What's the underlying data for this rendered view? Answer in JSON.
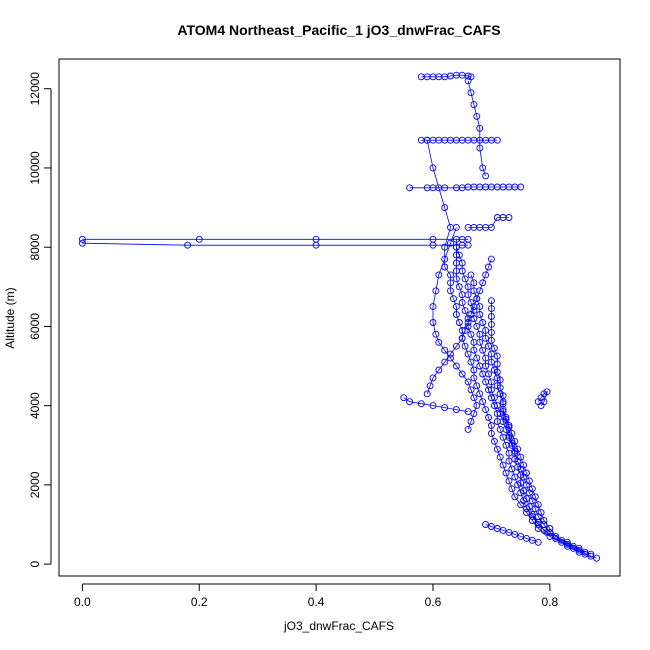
{
  "chart_data": {
    "type": "scatter",
    "title": "ATOM4 Northeast_Pacific_1 jO3_dnwFrac_CAFS",
    "xlabel": "jO3_dnwFrac_CAFS",
    "ylabel": "Altitude (m)",
    "xlim": [
      -0.04,
      0.92
    ],
    "ylim": [
      -300,
      12750
    ],
    "x_ticks": [
      0.0,
      0.2,
      0.4,
      0.6,
      0.8
    ],
    "x_tick_labels": [
      "0.0",
      "0.2",
      "0.4",
      "0.6",
      "0.8"
    ],
    "y_ticks": [
      0,
      2000,
      4000,
      6000,
      8000,
      10000,
      12000
    ],
    "y_tick_labels": [
      "0",
      "2000",
      "4000",
      "6000",
      "8000",
      "10000",
      "12000"
    ],
    "grid": false,
    "legend": "none",
    "marker": "open-circle",
    "connect_points": true,
    "series": [
      {
        "color": "#0000ff",
        "x": [
          0.88,
          0.86,
          0.84,
          0.82,
          0.8,
          0.78,
          0.77,
          0.76,
          0.75,
          0.74,
          0.735,
          0.73,
          0.725,
          0.72,
          0.715,
          0.71,
          0.705,
          0.7,
          0.7,
          0.695,
          0.69,
          0.685,
          0.68,
          0.675,
          0.67,
          0.67,
          0.665,
          0.66,
          0.655,
          0.65,
          0.65,
          0.645,
          0.64,
          0.64,
          0.635,
          0.63,
          0.63,
          0.63,
          0.62,
          0.62,
          0.63,
          0.62,
          0.61,
          0.6,
          0.59
        ],
        "y": [
          150,
          250,
          400,
          550,
          700,
          900,
          1100,
          1300,
          1500,
          1700,
          1900,
          2100,
          2300,
          2500,
          2700,
          2900,
          3100,
          3300,
          3500,
          3700,
          3900,
          4100,
          4300,
          4500,
          4700,
          4900,
          5100,
          5300,
          5500,
          5700,
          5900,
          6100,
          6300,
          6500,
          6700,
          6900,
          7100,
          7300,
          7500,
          8000,
          8500,
          9000,
          9500,
          10000,
          10700
        ]
      },
      {
        "color": "#0000ff",
        "x": [
          0.87,
          0.85,
          0.83,
          0.81,
          0.795,
          0.78,
          0.77,
          0.76,
          0.755,
          0.75,
          0.745,
          0.74,
          0.735,
          0.73,
          0.73,
          0.725,
          0.72,
          0.715,
          0.71,
          0.71,
          0.705,
          0.7,
          0.695,
          0.69,
          0.685,
          0.68,
          0.675,
          0.67,
          0.67,
          0.665,
          0.66,
          0.66,
          0.655,
          0.65,
          0.65,
          0.645,
          0.64,
          0.64,
          0.64,
          0.64,
          0.64
        ],
        "y": [
          200,
          350,
          500,
          650,
          800,
          1000,
          1200,
          1400,
          1600,
          1800,
          2000,
          2200,
          2400,
          2600,
          2800,
          3000,
          3200,
          3400,
          3600,
          3800,
          4000,
          4200,
          4400,
          4600,
          4800,
          5000,
          5200,
          5400,
          5600,
          5800,
          6000,
          6200,
          6400,
          6600,
          6800,
          7000,
          7200,
          7400,
          7600,
          7800,
          8000
        ]
      },
      {
        "color": "#0000ff",
        "x": [
          0.86,
          0.84,
          0.82,
          0.8,
          0.79,
          0.78,
          0.775,
          0.77,
          0.765,
          0.76,
          0.755,
          0.75,
          0.745,
          0.74,
          0.735,
          0.73,
          0.725,
          0.72,
          0.715,
          0.71,
          0.705,
          0.7,
          0.7,
          0.695,
          0.69,
          0.69,
          0.685,
          0.68,
          0.68,
          0.675,
          0.67,
          0.67,
          0.665,
          0.66,
          0.66,
          0.655,
          0.65,
          0.65,
          0.645,
          0.64,
          0.64
        ],
        "y": [
          300,
          450,
          600,
          800,
          1000,
          1200,
          1400,
          1600,
          1800,
          2000,
          2200,
          2400,
          2600,
          2800,
          3000,
          3200,
          3400,
          3600,
          3800,
          4000,
          4200,
          4400,
          4600,
          4800,
          5000,
          5200,
          5400,
          5600,
          5800,
          6000,
          6200,
          6400,
          6600,
          6800,
          7000,
          7200,
          7400,
          7600,
          7800,
          8000,
          8200
        ]
      },
      {
        "color": "#0000ff",
        "x": [
          0.87,
          0.85,
          0.83,
          0.81,
          0.8,
          0.79,
          0.785,
          0.78,
          0.775,
          0.77,
          0.765,
          0.76,
          0.755,
          0.75,
          0.745,
          0.74,
          0.735,
          0.73,
          0.725,
          0.72,
          0.72,
          0.715,
          0.71,
          0.71,
          0.705,
          0.7,
          0.7,
          0.695,
          0.69,
          0.69,
          0.685,
          0.68,
          0.68,
          0.675,
          0.67,
          0.67,
          0.665
        ],
        "y": [
          250,
          400,
          550,
          700,
          900,
          1100,
          1300,
          1500,
          1700,
          1900,
          2100,
          2300,
          2500,
          2700,
          2900,
          3100,
          3300,
          3500,
          3700,
          3900,
          4100,
          4300,
          4500,
          4700,
          4900,
          5100,
          5300,
          5500,
          5700,
          5900,
          6100,
          6300,
          6500,
          6700,
          6900,
          7100,
          7300
        ]
      },
      {
        "color": "#0000ff",
        "x": [
          0.85,
          0.83,
          0.81,
          0.79,
          0.78,
          0.77,
          0.765,
          0.76,
          0.755,
          0.75,
          0.75,
          0.745,
          0.74,
          0.74,
          0.735,
          0.73,
          0.73,
          0.725,
          0.72,
          0.72,
          0.72,
          0.715,
          0.715,
          0.71,
          0.71,
          0.71,
          0.705,
          0.7,
          0.7,
          0.7,
          0.7,
          0.7,
          0.7
        ],
        "y": [
          300,
          450,
          650,
          850,
          1050,
          1250,
          1450,
          1650,
          1850,
          2050,
          2250,
          2450,
          2650,
          2850,
          3050,
          3250,
          3450,
          3650,
          3850,
          4050,
          4250,
          4450,
          4650,
          4850,
          5050,
          5250,
          5450,
          5650,
          5850,
          6050,
          6250,
          6450,
          6650
        ]
      },
      {
        "color": "#0000ff",
        "x": [
          0.64,
          0.63,
          0.62,
          0.61,
          0.605,
          0.6,
          0.6,
          0.605,
          0.61,
          0.62,
          0.63,
          0.64,
          0.65,
          0.66,
          0.665,
          0.67,
          0.675,
          0.67,
          0.665,
          0.66
        ],
        "y": [
          8500,
          8100,
          7700,
          7300,
          6900,
          6500,
          6100,
          5800,
          5600,
          5400,
          5200,
          5000,
          4800,
          4600,
          4400,
          4200,
          4000,
          3800,
          3600,
          3400
        ]
      },
      {
        "color": "#0000ff",
        "x": [
          0.59,
          0.595,
          0.6,
          0.61,
          0.62,
          0.63,
          0.64,
          0.65,
          0.655,
          0.66,
          0.665,
          0.67,
          0.675,
          0.68,
          0.685,
          0.69,
          0.695,
          0.7
        ],
        "y": [
          4300,
          4500,
          4700,
          4900,
          5100,
          5300,
          5500,
          5700,
          5900,
          6100,
          6300,
          6500,
          6700,
          6900,
          7100,
          7300,
          7500,
          7700
        ]
      },
      {
        "color": "#0000ff",
        "x": [
          0.0,
          0.2,
          0.4,
          0.6,
          0.65,
          0.66
        ],
        "y": [
          8200,
          8200,
          8200,
          8200,
          8200,
          8200
        ]
      },
      {
        "color": "#0000ff",
        "x": [
          0.0,
          0.18,
          0.4,
          0.6,
          0.65,
          0.66
        ],
        "y": [
          8100,
          8050,
          8050,
          8050,
          8050,
          8050
        ]
      },
      {
        "color": "#0000ff",
        "x": [
          0.58,
          0.59,
          0.6,
          0.61,
          0.62,
          0.63,
          0.64,
          0.65,
          0.66,
          0.665
        ],
        "y": [
          12300,
          12300,
          12300,
          12300,
          12300,
          12320,
          12340,
          12340,
          12320,
          12300
        ]
      },
      {
        "color": "#0000ff",
        "x": [
          0.58,
          0.59,
          0.6,
          0.61,
          0.62,
          0.63,
          0.64,
          0.65,
          0.66,
          0.67,
          0.68,
          0.69,
          0.7,
          0.71
        ],
        "y": [
          10700,
          10700,
          10700,
          10700,
          10700,
          10700,
          10700,
          10700,
          10700,
          10700,
          10700,
          10700,
          10700,
          10700
        ]
      },
      {
        "color": "#0000ff",
        "x": [
          0.56,
          0.59,
          0.6,
          0.62,
          0.64,
          0.65,
          0.66,
          0.67,
          0.68,
          0.69,
          0.7,
          0.71,
          0.72,
          0.73,
          0.74,
          0.75
        ],
        "y": [
          9500,
          9500,
          9500,
          9500,
          9500,
          9500,
          9520,
          9520,
          9520,
          9520,
          9520,
          9520,
          9520,
          9520,
          9520,
          9520
        ]
      },
      {
        "color": "#0000ff",
        "x": [
          0.66,
          0.67,
          0.68,
          0.69,
          0.7,
          0.71,
          0.72,
          0.73
        ],
        "y": [
          8500,
          8500,
          8500,
          8500,
          8500,
          8750,
          8750,
          8750
        ]
      },
      {
        "color": "#0000ff",
        "x": [
          0.55,
          0.56,
          0.58,
          0.6,
          0.62,
          0.64,
          0.66
        ],
        "y": [
          4200,
          4100,
          4050,
          4000,
          3950,
          3900,
          3850
        ]
      },
      {
        "color": "#0000ff",
        "x": [
          0.69,
          0.7,
          0.71,
          0.72,
          0.73,
          0.74,
          0.75,
          0.76,
          0.77,
          0.78
        ],
        "y": [
          1000,
          950,
          900,
          850,
          800,
          750,
          700,
          650,
          600,
          550
        ]
      },
      {
        "color": "#0000ff",
        "x": [
          0.66,
          0.665,
          0.67,
          0.675,
          0.68,
          0.68,
          0.685,
          0.69
        ],
        "y": [
          12200,
          11900,
          11600,
          11300,
          11000,
          10500,
          10000,
          9800
        ]
      },
      {
        "color": "#0000ff",
        "x": [
          0.78,
          0.785,
          0.79,
          0.795,
          0.79,
          0.785
        ],
        "y": [
          4100,
          4200,
          4300,
          4350,
          4100,
          4000
        ]
      }
    ]
  }
}
